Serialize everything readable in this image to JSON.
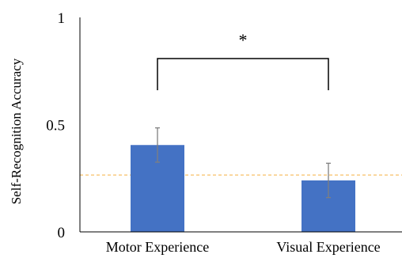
{
  "chart_data": {
    "type": "bar",
    "title": "",
    "xlabel": "",
    "ylabel": "Self-Recognition Accuracy",
    "ylim": [
      0,
      1
    ],
    "yticks": [
      {
        "value": 0,
        "label": "0"
      },
      {
        "value": 0.5,
        "label": "0.5"
      },
      {
        "value": 1,
        "label": "1"
      }
    ],
    "categories": [
      "Motor Experience",
      "Visual Experience"
    ],
    "values": [
      0.405,
      0.24
    ],
    "error": [
      0.08,
      0.08
    ],
    "reference_line": {
      "value": 0.265,
      "style": "dashed"
    },
    "significance": {
      "from": 0,
      "to": 1,
      "label": "*"
    },
    "grid": false,
    "legend": "none",
    "colors": {
      "bar": "#4472C4",
      "error_bar": "#7f7f7f",
      "axis": "#000000",
      "reference_line": "#F5B041"
    }
  }
}
